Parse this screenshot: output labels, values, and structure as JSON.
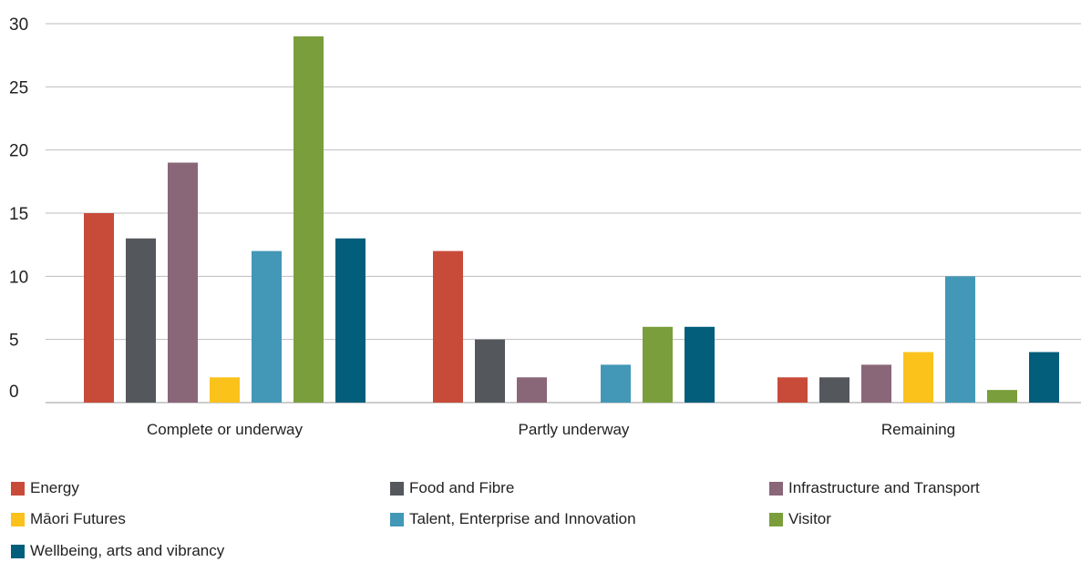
{
  "chart_data": {
    "type": "bar",
    "title": "",
    "xlabel": "",
    "ylabel": "",
    "ylim": [
      0,
      30
    ],
    "yticks": [
      0,
      5,
      10,
      15,
      20,
      25,
      30
    ],
    "ytick_labels": [
      "0",
      "5",
      "10",
      "15",
      "20",
      "25",
      "30"
    ],
    "grid": true,
    "legend_placement": "bottom",
    "categories": [
      "Complete or underway",
      "Partly underway",
      "Remaining"
    ],
    "series": [
      {
        "name": "Energy",
        "color": "#C84B3A",
        "values": [
          15,
          12,
          2
        ]
      },
      {
        "name": "Food and Fibre",
        "color": "#54575C",
        "values": [
          13,
          5,
          2
        ]
      },
      {
        "name": "Infrastructure and Transport",
        "color": "#8A6679",
        "values": [
          19,
          2,
          3
        ]
      },
      {
        "name": "Māori Futures",
        "color": "#FBC21C",
        "values": [
          2,
          0,
          4
        ]
      },
      {
        "name": "Talent, Enterprise and Innovation",
        "color": "#4298B6",
        "values": [
          12,
          3,
          10
        ]
      },
      {
        "name": "Visitor",
        "color": "#7A9E3C",
        "values": [
          29,
          6,
          1
        ]
      },
      {
        "name": "Wellbeing, arts and vibrancy",
        "color": "#035E7B",
        "values": [
          13,
          6,
          4
        ]
      }
    ]
  }
}
